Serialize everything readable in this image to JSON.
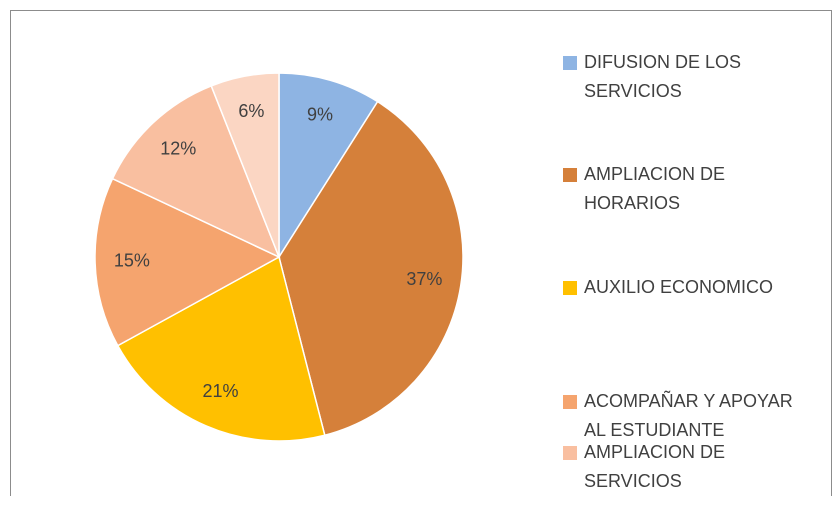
{
  "chart_data": {
    "type": "pie",
    "categories": [
      "DIFUSION DE LOS SERVICIOS",
      "AMPLIACION DE HORARIOS",
      "AUXILIO ECONOMICO",
      "ACOMPAÑAR Y APOYAR AL ESTUDIANTE",
      "AMPLIACION DE SERVICIOS",
      null
    ],
    "values": [
      9,
      37,
      21,
      15,
      12,
      6
    ],
    "value_labels": [
      "9%",
      "37%",
      "21%",
      "15%",
      "12%",
      "6%"
    ],
    "colors": [
      "#8eb4e3",
      "#d5803a",
      "#ffc000",
      "#f5a46e",
      "#f9bfa0",
      "#fbd6c3"
    ],
    "legend": "right"
  }
}
